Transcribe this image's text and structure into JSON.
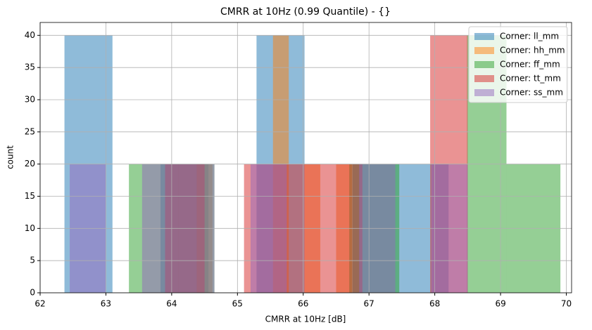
{
  "chart_data": {
    "type": "histogram",
    "title": "CMRR at 10Hz (0.99 Quantile) - {}",
    "xlabel": "CMRR at 10Hz [dB]",
    "ylabel": "count",
    "xlim": [
      62,
      70.08
    ],
    "ylim": [
      0,
      42
    ],
    "xticks": [
      62,
      63,
      64,
      65,
      66,
      67,
      68,
      69,
      70
    ],
    "yticks": [
      0,
      5,
      10,
      15,
      20,
      25,
      30,
      35,
      40
    ],
    "grid": true,
    "legend": "upper right",
    "opacity": 0.5,
    "series": [
      {
        "name": "Corner: ll_mm",
        "color": "#1f77b4",
        "bins": [
          62.37,
          63.1,
          63.83,
          64.56,
          65.29,
          66.02,
          66.75,
          67.48,
          68.21
        ],
        "values": [
          40,
          0,
          20,
          0,
          40,
          0,
          20,
          20
        ]
      },
      {
        "name": "Corner: hh_mm",
        "color": "#ff7f0e",
        "bins": [
          64.38,
          64.62,
          64.86,
          65.1,
          65.34,
          65.54,
          65.78,
          66.02,
          66.26,
          66.5,
          66.74
        ],
        "values": [
          20,
          0,
          0,
          0,
          0,
          40,
          0,
          20,
          0,
          20
        ]
      },
      {
        "name": "Corner: ff_mm",
        "color": "#2ca02c",
        "bins": [
          63.35,
          64.0,
          64.65,
          65.3,
          65.95,
          66.7,
          67.46,
          68.49,
          69.09,
          69.91
        ],
        "values": [
          20,
          20,
          0,
          0,
          0,
          20,
          0,
          40,
          20
        ]
      },
      {
        "name": "Corner: tt_mm",
        "color": "#d62728",
        "bins": [
          63.9,
          64.5,
          65.1,
          65.7,
          66.25,
          66.9,
          67.4,
          67.93,
          68.5
        ],
        "values": [
          20,
          0,
          20,
          20,
          20,
          0,
          0,
          40
        ]
      },
      {
        "name": "Corner: ss_mm",
        "color": "#9467bd",
        "bins": [
          62.45,
          63.0,
          63.55,
          64.1,
          64.65,
          65.2,
          65.75,
          66.3,
          66.85,
          67.4,
          67.95,
          68.5
        ],
        "values": [
          20,
          0,
          20,
          20,
          0,
          20,
          0,
          0,
          20,
          0,
          20
        ]
      }
    ]
  }
}
